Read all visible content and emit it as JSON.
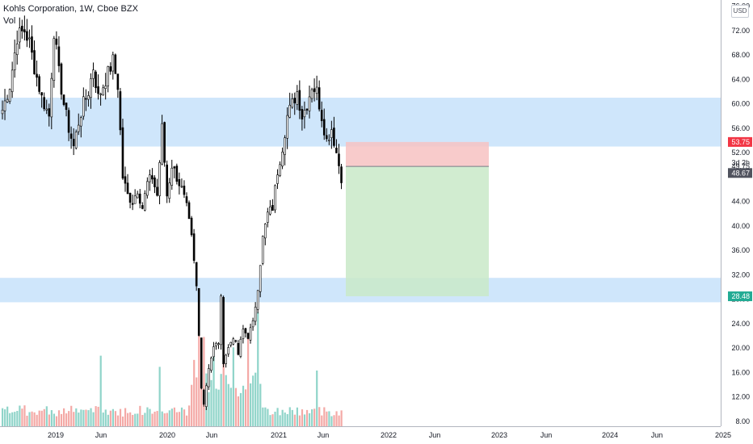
{
  "legend": {
    "title": "Kohls Corporation, 1W, Cboe BZX",
    "volume_label": "Vol"
  },
  "currency_button": "USD",
  "chart_data": {
    "type": "candlestick",
    "price_axis": {
      "ticks": [
        "8.00",
        "12.00",
        "16.00",
        "20.00",
        "24.00",
        "28.00",
        "32.00",
        "36.00",
        "40.00",
        "44.00",
        "49.75",
        "52.00",
        "56.00",
        "60.00",
        "64.00",
        "68.00",
        "72.00",
        "76.00"
      ],
      "range": [
        7.2,
        77.0
      ]
    },
    "time_axis": {
      "ticks": [
        "2019",
        "Jun",
        "2020",
        "Jun",
        "2021",
        "Jun",
        "2022",
        "Jun",
        "2023",
        "Jun",
        "2024",
        "Jun",
        "2025"
      ]
    },
    "price_labels": {
      "stop": {
        "value": "53.75",
        "color": "#f23645"
      },
      "entry_value": "49.75",
      "countdown": "3d 2h",
      "current": {
        "value": "48.67",
        "color": "#50535e"
      },
      "target": {
        "value": "28.48",
        "color": "#22ab94"
      }
    },
    "zones": [
      {
        "from": 53.0,
        "to": 61.0,
        "color": "#cfe6fb"
      },
      {
        "from": 27.5,
        "to": 31.5,
        "color": "#cfe6fb"
      }
    ],
    "position": {
      "side": "short",
      "entry": 49.75,
      "stop": 53.75,
      "target": 28.48,
      "loss_color": "#f7c2c2",
      "profit_color": "#c9e9c8"
    },
    "weekly_close_anchors": [
      [
        0,
        59
      ],
      [
        3,
        63
      ],
      [
        6,
        71
      ],
      [
        9,
        72
      ],
      [
        11,
        70
      ],
      [
        13,
        66
      ],
      [
        16,
        61
      ],
      [
        19,
        58
      ],
      [
        21,
        72
      ],
      [
        23,
        65
      ],
      [
        25,
        60
      ],
      [
        27,
        56
      ],
      [
        29,
        53
      ],
      [
        31,
        57
      ],
      [
        33,
        60
      ],
      [
        35,
        62
      ],
      [
        37,
        66
      ],
      [
        39,
        61
      ],
      [
        41,
        63
      ],
      [
        43,
        65
      ],
      [
        45,
        67
      ],
      [
        47,
        63
      ],
      [
        49,
        48
      ],
      [
        51,
        45
      ],
      [
        53,
        44
      ],
      [
        55,
        46
      ],
      [
        57,
        43
      ],
      [
        59,
        47
      ],
      [
        61,
        48
      ],
      [
        63,
        45
      ],
      [
        65,
        56
      ],
      [
        67,
        45
      ],
      [
        69,
        50
      ],
      [
        71,
        48
      ],
      [
        73,
        46
      ],
      [
        75,
        43
      ],
      [
        77,
        38
      ],
      [
        79,
        30
      ],
      [
        80,
        22
      ],
      [
        81,
        14
      ],
      [
        82,
        11
      ],
      [
        84,
        17
      ],
      [
        86,
        20
      ],
      [
        88,
        21
      ],
      [
        89,
        28
      ],
      [
        90,
        18
      ],
      [
        92,
        20
      ],
      [
        94,
        22
      ],
      [
        96,
        19
      ],
      [
        98,
        23
      ],
      [
        100,
        22
      ],
      [
        102,
        24
      ],
      [
        104,
        30
      ],
      [
        106,
        38
      ],
      [
        108,
        42
      ],
      [
        110,
        43
      ],
      [
        112,
        49
      ],
      [
        114,
        53
      ],
      [
        116,
        58
      ],
      [
        118,
        60
      ],
      [
        120,
        62
      ],
      [
        122,
        58
      ],
      [
        124,
        60
      ],
      [
        126,
        63
      ],
      [
        128,
        62
      ],
      [
        130,
        58
      ],
      [
        132,
        54
      ],
      [
        134,
        56
      ],
      [
        136,
        52
      ],
      [
        138,
        48
      ]
    ],
    "volume_spikes": {
      "40": 19,
      "64": 16,
      "78": 13,
      "80": 20,
      "82": 17,
      "86": 15,
      "90": 18,
      "94": 16,
      "100": 17,
      "104": 21,
      "128": 15
    }
  }
}
